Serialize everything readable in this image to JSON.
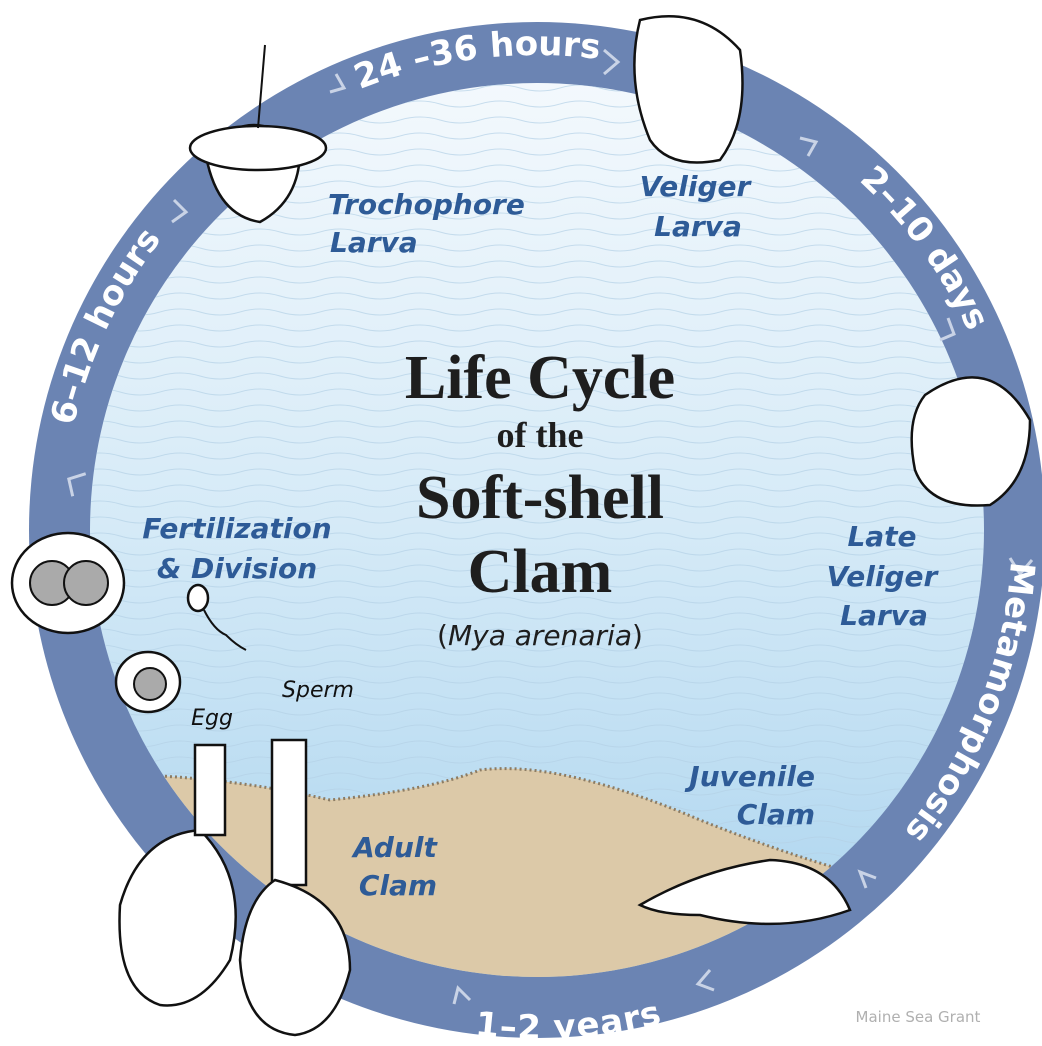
{
  "title": {
    "lines": [
      "Life Cycle",
      "of the",
      "Soft-shell",
      "Clam"
    ],
    "subtitle": [
      "(",
      "Mya arenaria",
      ")"
    ]
  },
  "durations": [
    "6–12 hours",
    "24 –36 hours",
    "2–10 days",
    "Metamorphosis",
    "1–2 years"
  ],
  "stages": [
    {
      "lines": [
        "Fertilization",
        "& Division"
      ]
    },
    {
      "lines": [
        "Trochophore",
        "Larva"
      ]
    },
    {
      "lines": [
        "Veliger",
        "Larva"
      ]
    },
    {
      "lines": [
        "Late",
        "Veliger",
        "Larva"
      ]
    },
    {
      "lines": [
        "Juvenile",
        "Clam"
      ]
    },
    {
      "lines": [
        "Adult",
        "Clam"
      ]
    }
  ],
  "gametes": [
    "Egg",
    "Sperm"
  ],
  "credit": "Maine Sea Grant"
}
